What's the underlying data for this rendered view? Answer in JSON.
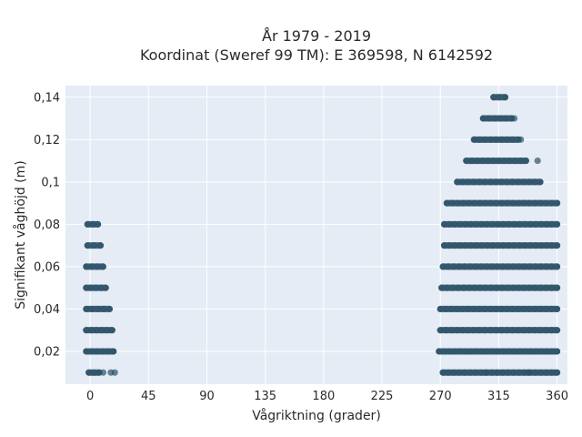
{
  "chart_data": {
    "type": "scatter",
    "title_line1": "År 1979 - 2019",
    "title_line2": "Koordinat (Sweref 99 TM): E 369598, N 6142592",
    "xlabel": "Vågriktning (grader)",
    "ylabel": "Signifikant våghöjd (m)",
    "xlim": [
      -19,
      368
    ],
    "ylim": [
      0.0045,
      0.1455
    ],
    "xticks": [
      0,
      45,
      90,
      135,
      180,
      225,
      270,
      315,
      360
    ],
    "xtick_labels": [
      "0",
      "45",
      "90",
      "135",
      "180",
      "225",
      "270",
      "315",
      "360"
    ],
    "yticks": [
      0.02,
      0.04,
      0.06,
      0.08,
      0.1,
      0.12,
      0.14
    ],
    "ytick_labels": [
      "0,02",
      "0,04",
      "0,06",
      "0,08",
      "0,1",
      "0,12",
      "0,14"
    ],
    "grid": true,
    "marker_color": "#2d5369",
    "plot_background": "#e5ecf6",
    "bands": [
      {
        "y": 0.01,
        "x_from": -1,
        "x_to": 7
      },
      {
        "y": 0.02,
        "x_from": -3,
        "x_to": 18
      },
      {
        "y": 0.03,
        "x_from": -3,
        "x_to": 17
      },
      {
        "y": 0.04,
        "x_from": -3,
        "x_to": 15
      },
      {
        "y": 0.05,
        "x_from": -3,
        "x_to": 12
      },
      {
        "y": 0.06,
        "x_from": -3,
        "x_to": 10
      },
      {
        "y": 0.07,
        "x_from": -2,
        "x_to": 8
      },
      {
        "y": 0.08,
        "x_from": -2,
        "x_to": 6
      },
      {
        "y": 0.01,
        "x_from": 272,
        "x_to": 360
      },
      {
        "y": 0.02,
        "x_from": 269,
        "x_to": 360
      },
      {
        "y": 0.03,
        "x_from": 270,
        "x_to": 360
      },
      {
        "y": 0.04,
        "x_from": 270,
        "x_to": 360
      },
      {
        "y": 0.05,
        "x_from": 271,
        "x_to": 360
      },
      {
        "y": 0.06,
        "x_from": 272,
        "x_to": 360
      },
      {
        "y": 0.07,
        "x_from": 273,
        "x_to": 360
      },
      {
        "y": 0.08,
        "x_from": 273,
        "x_to": 360
      },
      {
        "y": 0.09,
        "x_from": 275,
        "x_to": 360
      },
      {
        "y": 0.1,
        "x_from": 283,
        "x_to": 347
      },
      {
        "y": 0.11,
        "x_from": 290,
        "x_to": 336
      },
      {
        "y": 0.12,
        "x_from": 296,
        "x_to": 330
      },
      {
        "y": 0.13,
        "x_from": 303,
        "x_to": 325
      },
      {
        "y": 0.14,
        "x_from": 311,
        "x_to": 320
      }
    ],
    "points": [
      {
        "x": 10,
        "y": 0.01
      },
      {
        "x": 16,
        "y": 0.01
      },
      {
        "x": 19,
        "y": 0.01
      },
      {
        "x": 305,
        "y": 0.01
      },
      {
        "x": 338,
        "y": 0.01
      },
      {
        "x": 345,
        "y": 0.11
      },
      {
        "x": 332,
        "y": 0.12
      },
      {
        "x": 327,
        "y": 0.13
      }
    ]
  }
}
